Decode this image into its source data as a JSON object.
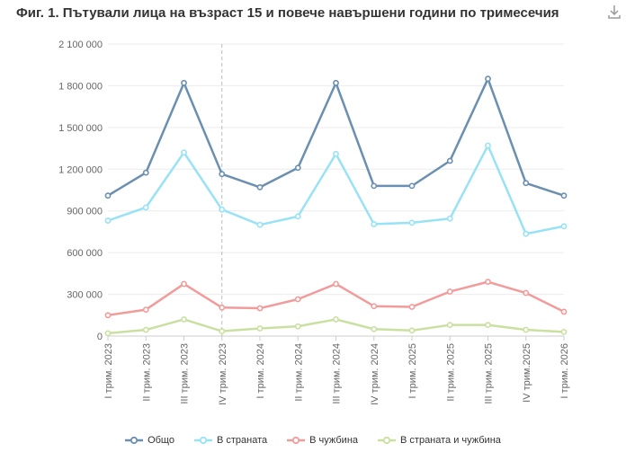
{
  "chart_title": "Фиг. 1. Пътували лица на възраст 15 и повече навършени години по тримесечия",
  "download_icon": "download-icon",
  "colors": {
    "total": "#6a8fb0",
    "domestic": "#98e2f5",
    "abroad": "#f29b9b",
    "both": "#c9e0a0"
  },
  "chart_data": {
    "type": "line",
    "title": "Фиг. 1. Пътували лица на възраст 15 и повече навършени години по тримесечия",
    "categories": [
      "I трим. 2023",
      "II трим. 2023",
      "III трим. 2023",
      "IV трим. 2023",
      "I трим. 2024",
      "II трим. 2024",
      "III трим. 2024",
      "IV трим. 2024",
      "I трим. 2025",
      "II трим. 2025",
      "III трим. 2025",
      "IV трим.2025",
      "I трим. 2026"
    ],
    "yticks": [
      "0",
      "300 000",
      "600 000",
      "900 000",
      "1 200 000",
      "1 500 000",
      "1 800 000",
      "2 100 000"
    ],
    "ylim": [
      0,
      2100000
    ],
    "grid": true,
    "marker_category": 3,
    "legend_position": "bottom",
    "series": [
      {
        "name": "Общо",
        "color": "#6a8fb0",
        "values": [
          1010000,
          1175000,
          1820000,
          1165000,
          1070000,
          1210000,
          1820000,
          1080000,
          1080000,
          1260000,
          1850000,
          1100000,
          1010000
        ]
      },
      {
        "name": "В страната",
        "color": "#98e2f5",
        "values": [
          830000,
          925000,
          1320000,
          910000,
          800000,
          860000,
          1310000,
          805000,
          815000,
          845000,
          1370000,
          735000,
          790000
        ]
      },
      {
        "name": "В чужбина",
        "color": "#f29b9b",
        "values": [
          150000,
          190000,
          375000,
          205000,
          200000,
          265000,
          375000,
          215000,
          210000,
          320000,
          390000,
          310000,
          175000
        ]
      },
      {
        "name": "В страната и чужбина",
        "color": "#c9e0a0",
        "values": [
          20000,
          45000,
          120000,
          35000,
          55000,
          70000,
          120000,
          50000,
          40000,
          80000,
          80000,
          45000,
          30000
        ]
      }
    ]
  }
}
